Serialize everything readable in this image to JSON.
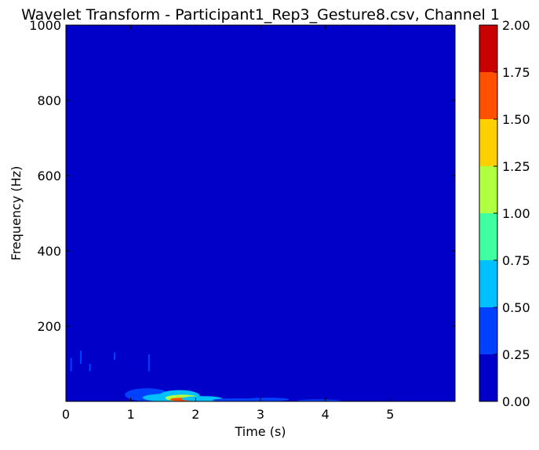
{
  "chart_data": {
    "type": "heatmap",
    "title": "Wavelet Transform - Participant1_Rep3_Gesture8.csv, Channel 1",
    "xlabel": "Time (s)",
    "ylabel": "Frequency (Hz)",
    "xlim": [
      0,
      6
    ],
    "ylim": [
      0,
      1000
    ],
    "x_ticks": [
      0,
      1,
      2,
      3,
      4,
      5
    ],
    "x_tick_labels": [
      "0",
      "1",
      "2",
      "3",
      "4",
      "5"
    ],
    "y_ticks": [
      200,
      400,
      600,
      800,
      1000
    ],
    "y_tick_labels": [
      "200",
      "400",
      "600",
      "800",
      "1000"
    ],
    "grid": false,
    "colorbar": {
      "levels": [
        0.0,
        0.25,
        0.5,
        0.75,
        1.0,
        1.25,
        1.5,
        1.75,
        2.0
      ],
      "tick_labels": [
        "0.00",
        "0.25",
        "0.50",
        "0.75",
        "1.00",
        "1.25",
        "1.50",
        "1.75",
        "2.00"
      ],
      "colors": [
        "#0000c8",
        "#0040ff",
        "#00c0ff",
        "#40ffa0",
        "#b0ff40",
        "#ffd000",
        "#ff5000",
        "#c80000"
      ]
    },
    "background_level": 0.0,
    "features": [
      {
        "x": 0.08,
        "y_range": [
          80,
          115
        ],
        "level": 0.25
      },
      {
        "x": 0.23,
        "y_range": [
          100,
          135
        ],
        "level": 0.25
      },
      {
        "x": 0.37,
        "y_range": [
          80,
          100
        ],
        "level": 0.25
      },
      {
        "x": 0.75,
        "y_range": [
          110,
          130
        ],
        "level": 0.25
      },
      {
        "x": 1.28,
        "y_range": [
          80,
          125
        ],
        "level": 0.25
      },
      {
        "x": 1.25,
        "y_range": [
          0,
          35
        ],
        "level": 0.25
      },
      {
        "x": 1.5,
        "y_range": [
          0,
          20
        ],
        "level": 0.5
      },
      {
        "x": 1.75,
        "y_range": [
          0,
          30
        ],
        "level": 0.5
      },
      {
        "x": 1.8,
        "y_range": [
          0,
          18
        ],
        "level": 1.0
      },
      {
        "x": 1.82,
        "y_range": [
          0,
          10
        ],
        "level": 1.5
      },
      {
        "x": 2.1,
        "y_range": [
          0,
          14
        ],
        "level": 0.5
      },
      {
        "x": 2.6,
        "y_range": [
          0,
          8
        ],
        "level": 0.25
      },
      {
        "x": 3.1,
        "y_range": [
          0,
          10
        ],
        "level": 0.25
      },
      {
        "x": 3.9,
        "y_range": [
          0,
          4
        ],
        "level": 0.25
      }
    ]
  }
}
